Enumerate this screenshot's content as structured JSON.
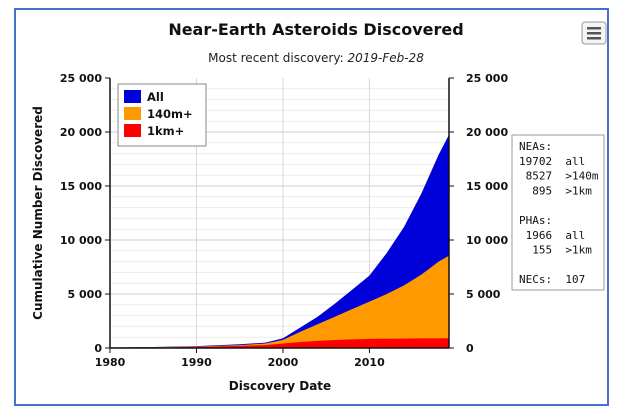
{
  "colors": {
    "all": "#0000d8",
    "m140": "#ff9900",
    "km1": "#ff0000",
    "frame_border": "#4472c4"
  },
  "menu": {
    "icon": "hamburger-menu-icon"
  },
  "chart_data": {
    "type": "area",
    "title": "Near-Earth Asteroids Discovered",
    "subtitle": {
      "prefix": "Most recent discovery: ",
      "date": "2019-Feb-28"
    },
    "xlabel": "Discovery Date",
    "ylabel": "Cumulative Number Discovered",
    "xlim": [
      1980,
      2019.2
    ],
    "ylim": [
      0,
      25000
    ],
    "xticks": [
      {
        "value": 1980,
        "label": "1980"
      },
      {
        "value": 1990,
        "label": "1990"
      },
      {
        "value": 2000,
        "label": "2000"
      },
      {
        "value": 2010,
        "label": "2010"
      }
    ],
    "yticks": [
      {
        "value": 0,
        "label": "0"
      },
      {
        "value": 5000,
        "label": "5 000"
      },
      {
        "value": 10000,
        "label": "10 000"
      },
      {
        "value": 15000,
        "label": "15 000"
      },
      {
        "value": 20000,
        "label": "20 000"
      },
      {
        "value": 25000,
        "label": "25 000"
      }
    ],
    "grid": true,
    "legend_position": "top-left",
    "x": [
      1980,
      1985,
      1990,
      1995,
      1998,
      2000,
      2002,
      2004,
      2006,
      2008,
      2010,
      2012,
      2014,
      2016,
      2017,
      2018,
      2019.17
    ],
    "series": [
      {
        "name": "All",
        "key": "all",
        "values": [
          50,
          90,
          180,
          340,
          500,
          900,
          1900,
          2900,
          4100,
          5400,
          6700,
          8800,
          11200,
          14300,
          16100,
          17900,
          19702
        ]
      },
      {
        "name": "140m+",
        "key": "m140",
        "values": [
          40,
          70,
          140,
          270,
          420,
          750,
          1500,
          2200,
          2900,
          3600,
          4300,
          5000,
          5800,
          6800,
          7400,
          8000,
          8527
        ]
      },
      {
        "name": "1km+",
        "key": "km1",
        "values": [
          30,
          50,
          100,
          190,
          280,
          420,
          560,
          660,
          740,
          800,
          840,
          860,
          875,
          885,
          890,
          893,
          895
        ]
      }
    ],
    "info_box": {
      "lines": [
        "NEAs:",
        "19702  all",
        " 8527  >140m",
        "  895  >1km",
        "",
        "PHAs:",
        " 1966  all",
        "  155  >1km",
        "",
        "NECs:  107"
      ]
    }
  }
}
